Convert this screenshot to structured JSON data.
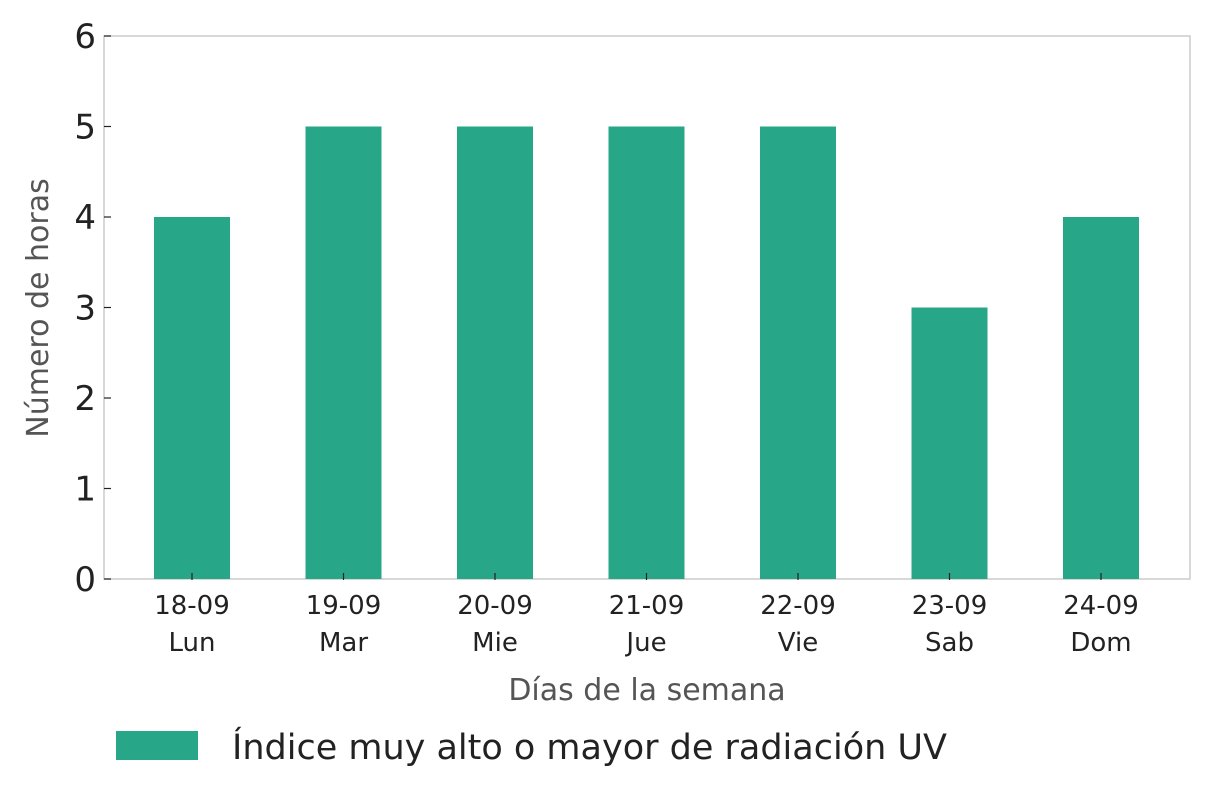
{
  "chart_data": {
    "type": "bar",
    "categories": [
      {
        "date": "18-09",
        "day": "Lun"
      },
      {
        "date": "19-09",
        "day": "Mar"
      },
      {
        "date": "20-09",
        "day": "Mie"
      },
      {
        "date": "21-09",
        "day": "Jue"
      },
      {
        "date": "22-09",
        "day": "Vie"
      },
      {
        "date": "23-09",
        "day": "Sab"
      },
      {
        "date": "24-09",
        "day": "Dom"
      }
    ],
    "series": [
      {
        "name": "Índice muy alto o mayor de radiación UV",
        "values": [
          4,
          5,
          5,
          5,
          5,
          3,
          4
        ],
        "color": "#28a688"
      }
    ],
    "title": "",
    "xlabel": "Días de la semana",
    "ylabel": "Número de horas",
    "ylim": [
      0,
      6
    ],
    "yticks": [
      "0",
      "1",
      "2",
      "3",
      "4",
      "5",
      "6"
    ],
    "grid": false,
    "legend_position": "bottom"
  }
}
